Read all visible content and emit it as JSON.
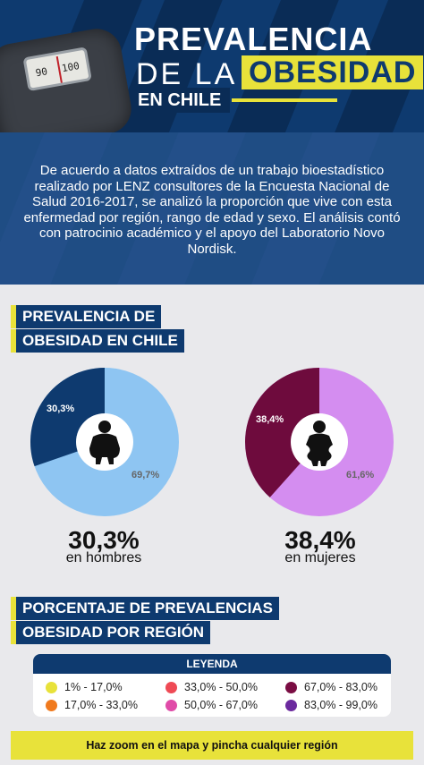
{
  "header": {
    "title_line1": "PREVALENCIA",
    "title_line2_pre": "DE LA",
    "title_line2_highlight": "OBESIDAD",
    "title_line3": "EN CHILE",
    "scale_numbers": [
      "90",
      "100"
    ]
  },
  "intro": {
    "text": "De acuerdo a datos extraídos de un trabajo bioestadístico realizado por LENZ consultores de la Encuesta Nacional de Salud 2016-2017, se analizó la proporción que vive con esta enfermedad por región, rango de edad y sexo. El análisis contó con patrocinio académico y el apoyo del Laboratorio Novo Nordisk."
  },
  "section1": {
    "line1": "PREVALENCIA DE",
    "line2": "OBESIDAD EN CHILE"
  },
  "men": {
    "pct_label": "30,3%",
    "rest_label": "69,7%",
    "big": "30,3%",
    "sub": "en hombres",
    "value": 30.3,
    "color_main": "#0e3a6f",
    "color_rest": "#8ec5f2"
  },
  "women": {
    "pct_label": "38,4%",
    "rest_label": "61,6%",
    "big": "38,4%",
    "sub": "en mujeres",
    "value": 38.4,
    "color_main": "#6e0b3d",
    "color_rest": "#d48df0"
  },
  "section2": {
    "line1": "PORCENTAJE DE PREVALENCIAS",
    "line2": "OBESIDAD POR REGIÓN"
  },
  "legend": {
    "title": "LEYENDA",
    "items": [
      {
        "label": "1% - 17,0%",
        "color": "#e8e23a"
      },
      {
        "label": "17,0% - 33,0%",
        "color": "#f07a1e"
      },
      {
        "label": "33,0% - 50,0%",
        "color": "#ef4a55"
      },
      {
        "label": "50,0% - 67,0%",
        "color": "#e04ba8"
      },
      {
        "label": "67,0% - 83,0%",
        "color": "#7a0d43"
      },
      {
        "label": "83,0% - 99,0%",
        "color": "#6b2a9e"
      }
    ]
  },
  "zoom_text": "Haz zoom en el mapa y pincha cualquier región"
}
